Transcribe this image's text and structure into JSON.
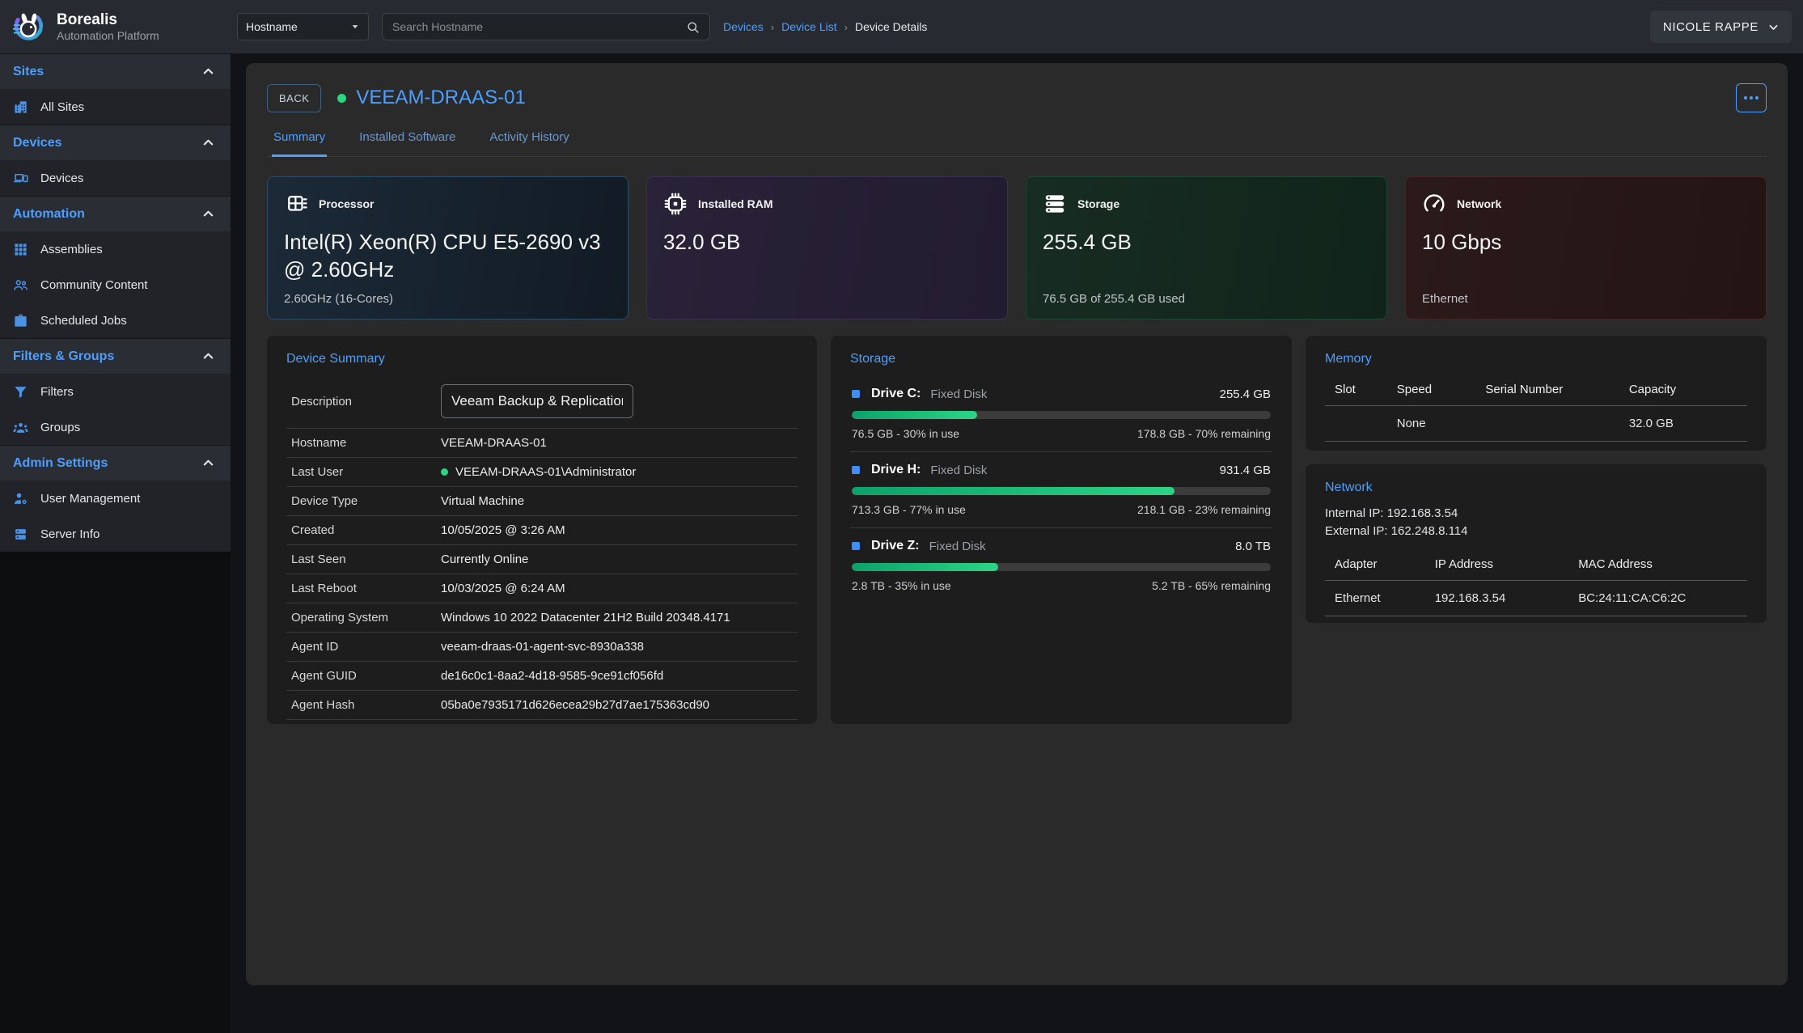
{
  "brand": {
    "name": "Borealis",
    "subtitle": "Automation Platform"
  },
  "topbar": {
    "filter_label": "Hostname",
    "search_placeholder": "Search Hostname",
    "breadcrumbs": [
      {
        "label": "Devices",
        "link": true
      },
      {
        "label": "Device List",
        "link": true
      },
      {
        "label": "Device Details",
        "link": false
      }
    ],
    "user": "NICOLE RAPPE"
  },
  "sidebar": {
    "sections": [
      {
        "label": "Sites",
        "items": [
          {
            "label": "All Sites",
            "icon": "building-icon"
          }
        ]
      },
      {
        "label": "Devices",
        "items": [
          {
            "label": "Devices",
            "icon": "devices-icon"
          }
        ]
      },
      {
        "label": "Automation",
        "items": [
          {
            "label": "Assemblies",
            "icon": "grid-icon"
          },
          {
            "label": "Community Content",
            "icon": "people-icon"
          },
          {
            "label": "Scheduled Jobs",
            "icon": "briefcase-icon"
          }
        ]
      },
      {
        "label": "Filters & Groups",
        "items": [
          {
            "label": "Filters",
            "icon": "funnel-icon"
          },
          {
            "label": "Groups",
            "icon": "groups-icon"
          }
        ]
      },
      {
        "label": "Admin Settings",
        "items": [
          {
            "label": "User Management",
            "icon": "user-gear-icon"
          },
          {
            "label": "Server Info",
            "icon": "server-icon"
          }
        ]
      }
    ]
  },
  "header": {
    "back_label": "BACK",
    "device_name": "VEEAM-DRAAS-01",
    "status": "online"
  },
  "tabs": [
    {
      "label": "Summary",
      "active": true
    },
    {
      "label": "Installed Software",
      "active": false
    },
    {
      "label": "Activity History",
      "active": false
    }
  ],
  "stat_cards": [
    {
      "title": "Processor",
      "icon": "cpu-icon",
      "value": "Intel(R) Xeon(R) CPU E5-2690 v3 @ 2.60GHz",
      "footer": "2.60GHz (16-Cores)"
    },
    {
      "title": "Installed RAM",
      "icon": "ram-icon",
      "value": "32.0 GB",
      "footer": ""
    },
    {
      "title": "Storage",
      "icon": "storage-icon",
      "value": "255.4 GB",
      "footer": "76.5 GB of 255.4 GB used"
    },
    {
      "title": "Network",
      "icon": "network-icon",
      "value": "10 Gbps",
      "footer": "Ethernet"
    }
  ],
  "device_summary": {
    "title": "Device Summary",
    "description_label": "Description",
    "description_value": "Veeam Backup & Replication",
    "rows": [
      {
        "label": "Hostname",
        "value": "VEEAM-DRAAS-01",
        "dot": false
      },
      {
        "label": "Last User",
        "value": "VEEAM-DRAAS-01\\Administrator",
        "dot": true
      },
      {
        "label": "Device Type",
        "value": "Virtual Machine",
        "dot": false
      },
      {
        "label": "Created",
        "value": "10/05/2025 @ 3:26 AM",
        "dot": false
      },
      {
        "label": "Last Seen",
        "value": "Currently Online",
        "dot": false
      },
      {
        "label": "Last Reboot",
        "value": "10/03/2025 @ 6:24 AM",
        "dot": false
      },
      {
        "label": "Operating System",
        "value": "Windows 10 2022 Datacenter 21H2 Build 20348.4171",
        "dot": false
      },
      {
        "label": "Agent ID",
        "value": "veeam-draas-01-agent-svc-8930a338",
        "dot": false
      },
      {
        "label": "Agent GUID",
        "value": "de16c0c1-8aa2-4d18-9585-9ce91cf056fd",
        "dot": false
      },
      {
        "label": "Agent Hash",
        "value": "05ba0e7935171d626ecea29b27d7ae175363cd90",
        "dot": false
      }
    ]
  },
  "storage_panel": {
    "title": "Storage",
    "drives": [
      {
        "name": "Drive C:",
        "type": "Fixed Disk",
        "size": "255.4 GB",
        "used_pct": 30,
        "used_text": "76.5 GB - 30% in use",
        "remaining_text": "178.8 GB - 70% remaining"
      },
      {
        "name": "Drive H:",
        "type": "Fixed Disk",
        "size": "931.4 GB",
        "used_pct": 77,
        "used_text": "713.3 GB - 77% in use",
        "remaining_text": "218.1 GB - 23% remaining"
      },
      {
        "name": "Drive Z:",
        "type": "Fixed Disk",
        "size": "8.0 TB",
        "used_pct": 35,
        "used_text": "2.8 TB - 35% in use",
        "remaining_text": "5.2 TB - 65% remaining"
      }
    ]
  },
  "memory_panel": {
    "title": "Memory",
    "columns": [
      "Slot",
      "Speed",
      "Serial Number",
      "Capacity"
    ],
    "rows": [
      [
        "",
        "None",
        "",
        "32.0 GB"
      ]
    ]
  },
  "network_panel": {
    "title": "Network",
    "internal_ip": "Internal IP: 192.168.3.54",
    "external_ip": "External IP: 162.248.8.114",
    "columns": [
      "Adapter",
      "IP Address",
      "MAC Address"
    ],
    "rows": [
      [
        "Ethernet",
        "192.168.3.54",
        "BC:24:11:CA:C6:2C"
      ]
    ]
  },
  "colors": {
    "accent": "#4d9fff",
    "success": "#2bd680",
    "drive_bullet": "#3e8ef7",
    "progress_from": "#0ca26b",
    "progress_to": "#2bd584"
  }
}
